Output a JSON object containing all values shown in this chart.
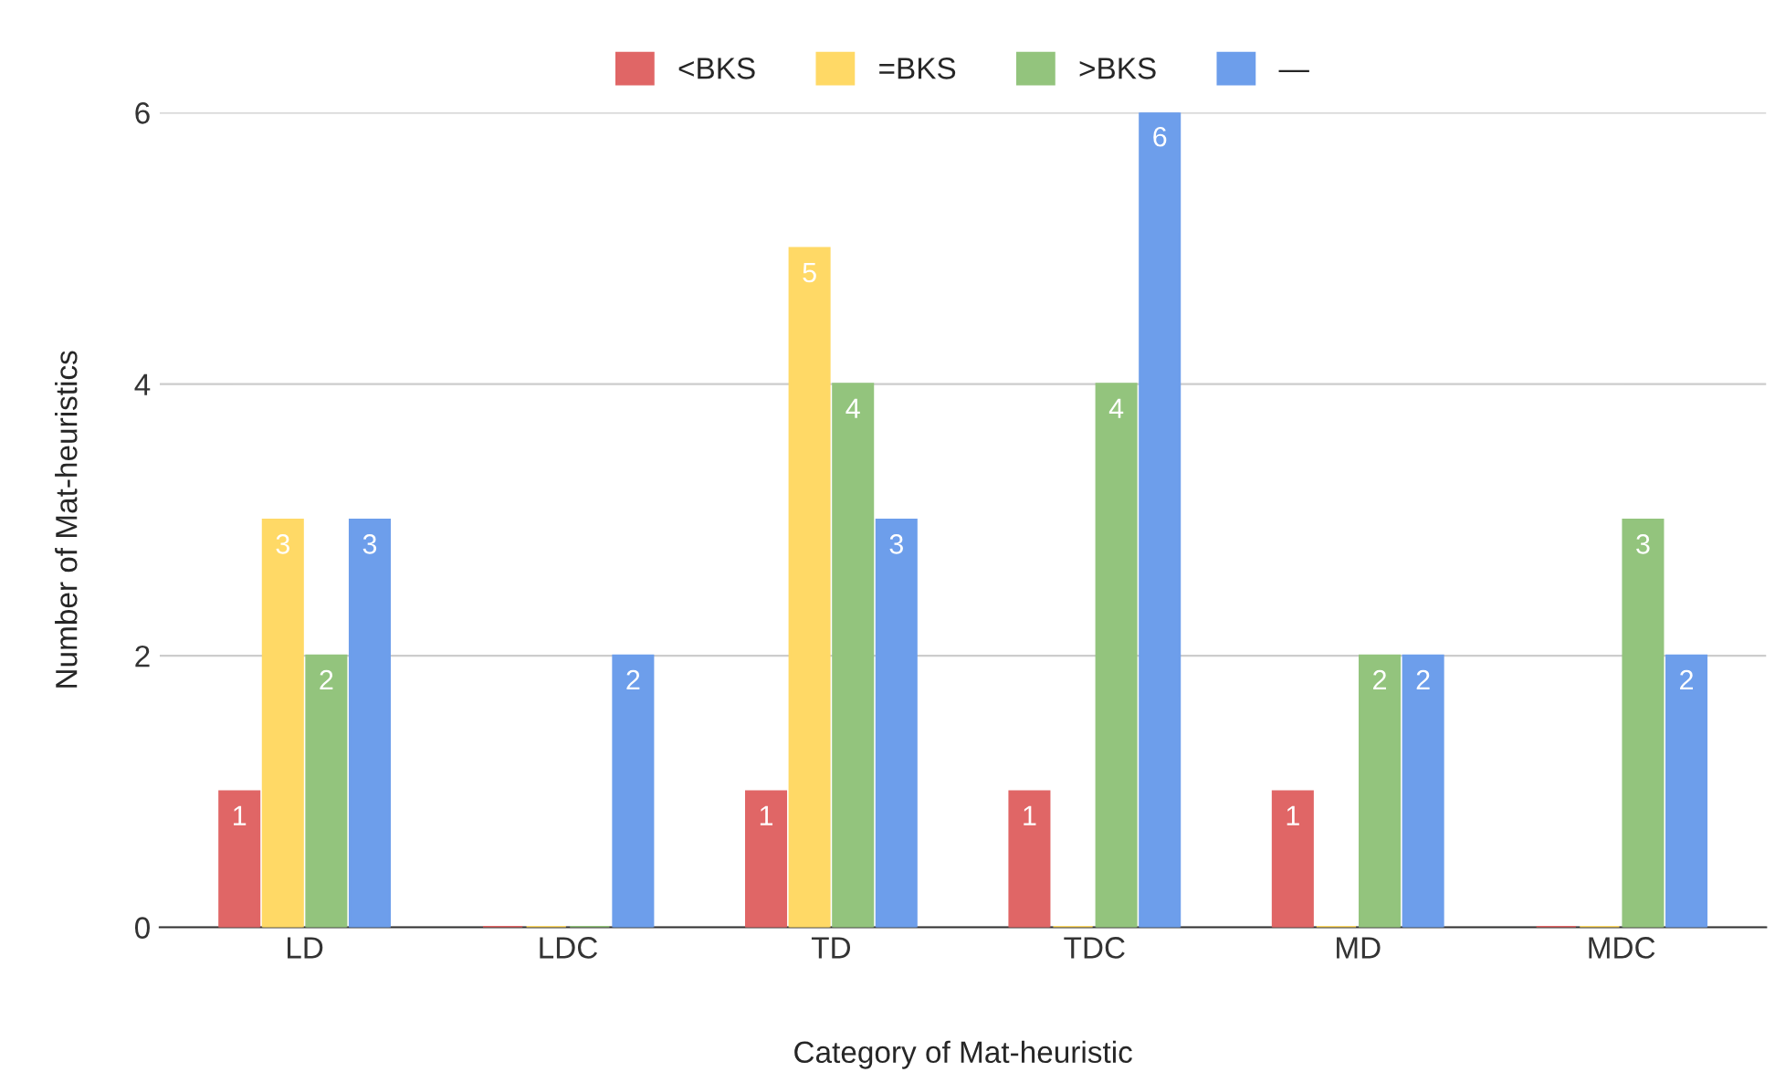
{
  "chart_data": {
    "type": "bar",
    "xlabel": "Category of Mat-heuristic",
    "ylabel": "Number of Mat-heuristics",
    "categories": [
      "LD",
      "LDC",
      "TD",
      "TDC",
      "MD",
      "MDC"
    ],
    "series": [
      {
        "name": "<BKS",
        "color": "#e06666",
        "values": [
          1,
          0,
          1,
          1,
          1,
          0
        ],
        "value_labels": [
          "1",
          null,
          "1",
          "1",
          "1",
          null
        ]
      },
      {
        "name": "=BKS",
        "color": "#ffd966",
        "values": [
          3,
          0,
          5,
          0,
          0,
          0
        ],
        "value_labels": [
          "3",
          null,
          "5",
          null,
          null,
          null
        ]
      },
      {
        "name": ">BKS",
        "color": "#93c47d",
        "values": [
          2,
          0,
          4,
          4,
          2,
          3
        ],
        "value_labels": [
          "2",
          null,
          "4",
          "4",
          "2",
          "3"
        ]
      },
      {
        "name": "—",
        "color": "#6d9eeb",
        "values": [
          3,
          2,
          3,
          6,
          2,
          2
        ],
        "value_labels": [
          "3",
          "2",
          "3",
          "6",
          "2",
          "2"
        ]
      }
    ],
    "ylim": [
      0,
      6
    ],
    "yticks": [
      0,
      2,
      4,
      6
    ],
    "grid": "y",
    "legend": "top"
  }
}
